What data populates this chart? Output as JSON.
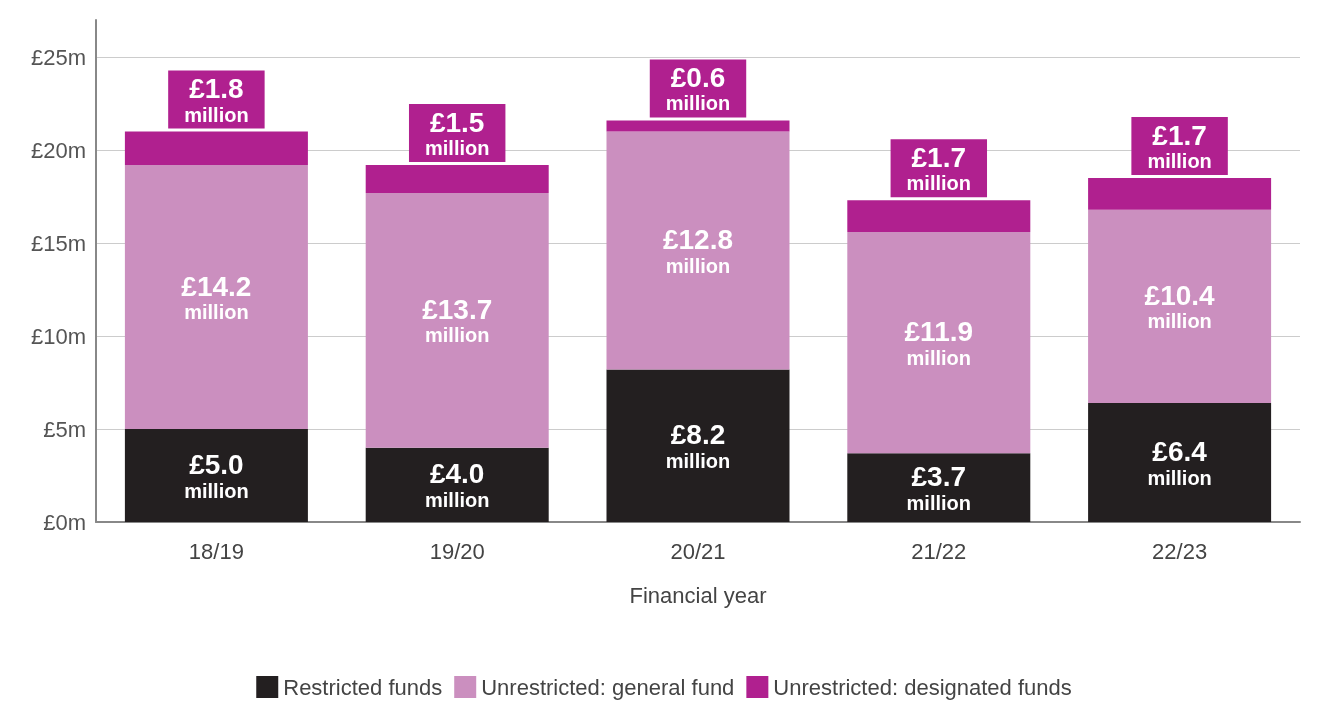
{
  "chart_data": {
    "type": "bar",
    "stacked": true,
    "xlabel": "Financial year",
    "categories": [
      "18/19",
      "19/20",
      "20/21",
      "21/22",
      "22/23"
    ],
    "series": [
      {
        "name": "Restricted funds",
        "color": "#231f20",
        "values": [
          5.0,
          4.0,
          8.2,
          3.7,
          6.4
        ],
        "value_labels": [
          "£5.0 million",
          "£4.0 million",
          "£8.2 million",
          "£3.7 million",
          "£6.4 million"
        ]
      },
      {
        "name": "Unrestricted: general fund",
        "color": "#cb8fbf",
        "values": [
          14.2,
          13.7,
          12.8,
          11.9,
          10.4
        ],
        "value_labels": [
          "£14.2 million",
          "£13.7 million",
          "£12.8 million",
          "£11.9 million",
          "£10.4 million"
        ]
      },
      {
        "name": "Unrestricted: designated funds",
        "color": "#b0208f",
        "values": [
          1.8,
          1.5,
          0.6,
          1.7,
          1.7
        ],
        "value_labels": [
          "£1.8 million",
          "£1.5 million",
          "£0.6 million",
          "£1.7 million",
          "£1.7 million"
        ]
      }
    ],
    "ylim": [
      0,
      27
    ],
    "yticks": [
      {
        "value": 0,
        "label": "£0m"
      },
      {
        "value": 5,
        "label": "£5m"
      },
      {
        "value": 10,
        "label": "£10m"
      },
      {
        "value": 15,
        "label": "£15m"
      },
      {
        "value": 20,
        "label": "£20m"
      },
      {
        "value": 25,
        "label": "£25m"
      }
    ],
    "grid": "y",
    "legend": "bottom"
  }
}
